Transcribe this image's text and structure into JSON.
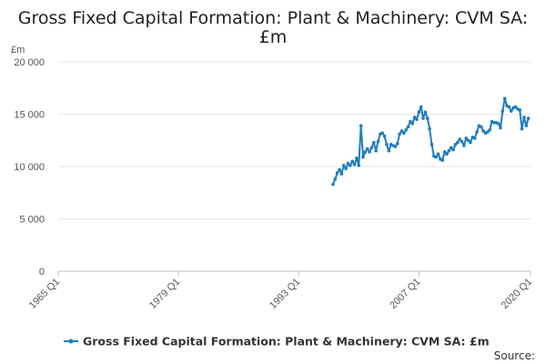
{
  "chart_data": {
    "type": "line",
    "title_line1": "Gross Fixed Capital Formation: Plant & Machinery: CVM SA:",
    "title_line2": "£m",
    "ylabel": "£m",
    "xlabel": "",
    "ylim": [
      0,
      20000
    ],
    "xlim": [
      1965.0,
      2020.0
    ],
    "y_ticks": [
      {
        "value": 0,
        "label": "0"
      },
      {
        "value": 5000,
        "label": "5 000"
      },
      {
        "value": 10000,
        "label": "10 000"
      },
      {
        "value": 15000,
        "label": "15 000"
      },
      {
        "value": 20000,
        "label": "20 000"
      }
    ],
    "x_ticks": [
      {
        "value": 1965.0,
        "label": "1965 Q1"
      },
      {
        "value": 1979.0,
        "label": "1979 Q1"
      },
      {
        "value": 1993.0,
        "label": "1993 Q1"
      },
      {
        "value": 2007.0,
        "label": "2007 Q1"
      },
      {
        "value": 2020.0,
        "label": "2020 Q1"
      }
    ],
    "grid": true,
    "legend_position": "bottom",
    "source_label": "Source:",
    "series": [
      {
        "name": "Gross Fixed Capital Formation: Plant & Machinery: CVM SA: £m",
        "color": "#1f7dbf",
        "points": [
          [
            1997.0,
            8300
          ],
          [
            1997.25,
            8800
          ],
          [
            1997.5,
            9400
          ],
          [
            1997.75,
            9700
          ],
          [
            1998.0,
            9300
          ],
          [
            1998.25,
            10100
          ],
          [
            1998.5,
            9800
          ],
          [
            1998.75,
            10300
          ],
          [
            1999.0,
            10100
          ],
          [
            1999.25,
            10500
          ],
          [
            1999.5,
            10200
          ],
          [
            1999.75,
            10800
          ],
          [
            2000.0,
            10100
          ],
          [
            2000.25,
            13900
          ],
          [
            2000.5,
            10900
          ],
          [
            2000.75,
            11400
          ],
          [
            2001.0,
            11700
          ],
          [
            2001.25,
            11400
          ],
          [
            2001.5,
            11800
          ],
          [
            2001.75,
            12300
          ],
          [
            2002.0,
            11500
          ],
          [
            2002.25,
            12400
          ],
          [
            2002.5,
            13100
          ],
          [
            2002.75,
            13200
          ],
          [
            2003.0,
            12900
          ],
          [
            2003.25,
            12100
          ],
          [
            2003.5,
            11500
          ],
          [
            2003.75,
            12100
          ],
          [
            2004.0,
            12000
          ],
          [
            2004.25,
            11900
          ],
          [
            2004.5,
            12200
          ],
          [
            2004.75,
            13100
          ],
          [
            2005.0,
            13400
          ],
          [
            2005.25,
            13200
          ],
          [
            2005.5,
            13500
          ],
          [
            2005.75,
            13800
          ],
          [
            2006.0,
            14300
          ],
          [
            2006.25,
            14100
          ],
          [
            2006.5,
            14700
          ],
          [
            2006.75,
            14500
          ],
          [
            2007.0,
            15200
          ],
          [
            2007.25,
            15700
          ],
          [
            2007.5,
            14600
          ],
          [
            2007.75,
            15200
          ],
          [
            2008.0,
            14600
          ],
          [
            2008.25,
            13600
          ],
          [
            2008.5,
            12100
          ],
          [
            2008.75,
            11000
          ],
          [
            2009.0,
            10900
          ],
          [
            2009.25,
            11200
          ],
          [
            2009.5,
            10700
          ],
          [
            2009.75,
            10600
          ],
          [
            2010.0,
            11400
          ],
          [
            2010.25,
            11200
          ],
          [
            2010.5,
            11500
          ],
          [
            2010.75,
            11800
          ],
          [
            2011.0,
            11600
          ],
          [
            2011.25,
            12100
          ],
          [
            2011.5,
            12300
          ],
          [
            2011.75,
            12600
          ],
          [
            2012.0,
            12400
          ],
          [
            2012.25,
            12000
          ],
          [
            2012.5,
            12700
          ],
          [
            2012.75,
            12500
          ],
          [
            2013.0,
            12300
          ],
          [
            2013.25,
            12800
          ],
          [
            2013.5,
            12700
          ],
          [
            2013.75,
            13300
          ],
          [
            2014.0,
            13900
          ],
          [
            2014.25,
            13800
          ],
          [
            2014.5,
            13400
          ],
          [
            2014.75,
            13200
          ],
          [
            2015.0,
            13300
          ],
          [
            2015.25,
            13500
          ],
          [
            2015.5,
            14300
          ],
          [
            2015.75,
            14200
          ],
          [
            2016.0,
            14200
          ],
          [
            2016.25,
            14100
          ],
          [
            2016.5,
            13700
          ],
          [
            2016.75,
            15300
          ],
          [
            2017.0,
            16500
          ],
          [
            2017.25,
            15800
          ],
          [
            2017.5,
            15700
          ],
          [
            2017.75,
            15300
          ],
          [
            2018.0,
            15600
          ],
          [
            2018.25,
            15700
          ],
          [
            2018.5,
            15500
          ],
          [
            2018.75,
            15400
          ],
          [
            2019.0,
            13600
          ],
          [
            2019.25,
            14700
          ],
          [
            2019.5,
            13900
          ],
          [
            2019.75,
            14600
          ]
        ]
      }
    ]
  }
}
